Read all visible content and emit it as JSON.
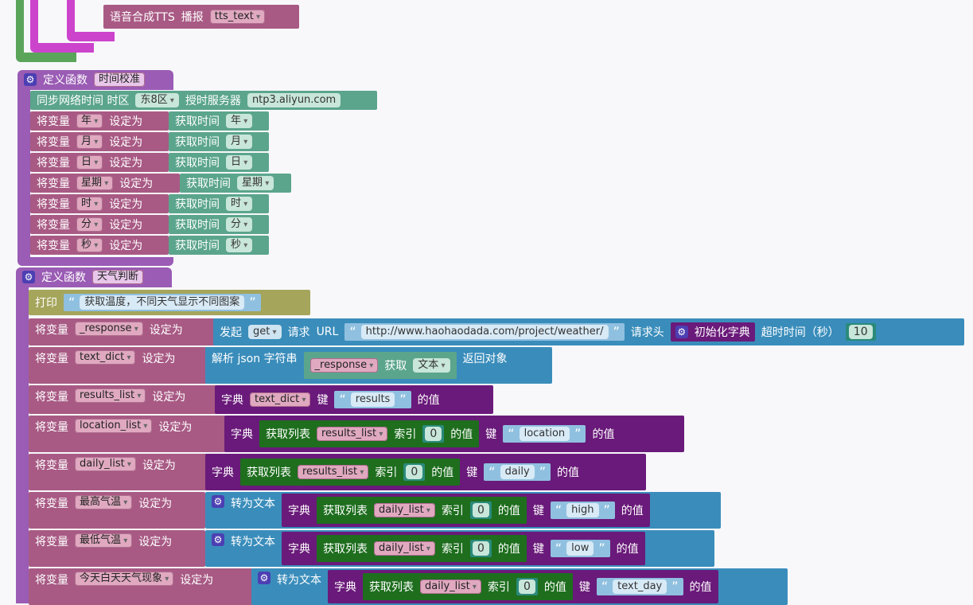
{
  "top": {
    "tts_label": "语音合成TTS",
    "broadcast_label": "播报",
    "tts_var": "tts_text"
  },
  "func1": {
    "define_label": "定义函数",
    "name": "时间校准",
    "ntp": {
      "label": "同步网络时间 时区",
      "timezone": "东8区",
      "server_label": "授时服务器",
      "server": "ntp3.aliyun.com"
    },
    "set_label": "将变量",
    "set_to": "设定为",
    "get_time": "获取时间",
    "rows": [
      {
        "var": "年",
        "unit": "年"
      },
      {
        "var": "月",
        "unit": "月"
      },
      {
        "var": "日",
        "unit": "日"
      },
      {
        "var": "星期",
        "unit": "星期"
      },
      {
        "var": "时",
        "unit": "时"
      },
      {
        "var": "分",
        "unit": "分"
      },
      {
        "var": "秒",
        "unit": "秒"
      }
    ]
  },
  "func2": {
    "define_label": "定义函数",
    "name": "天气判断",
    "print_label": "打印",
    "print_text": "获取温度，不同天气显示不同图案",
    "set_label": "将变量",
    "set_to": "设定为",
    "request": {
      "var": "_response",
      "send": "发起",
      "method": "get",
      "req": "请求",
      "url_label": "URL",
      "url": "http://www.haohaodada.com/project/weather/",
      "header_label": "请求头",
      "init_dict": "初始化字典",
      "timeout_label": "超时时间（秒）",
      "timeout": "10"
    },
    "parse": {
      "var": "text_dict",
      "label": "解析 json 字符串",
      "src": "_response",
      "get": "获取",
      "type": "文本",
      "return": "返回对象"
    },
    "dict_label": "字典",
    "key_label": "键",
    "value_label": "的值",
    "get_list": "获取列表",
    "index_label": "索引",
    "to_text": "转为文本",
    "results": {
      "var": "results_list",
      "dict": "text_dict",
      "key": "results"
    },
    "location": {
      "var": "location_list",
      "list": "results_list",
      "index": "0",
      "key": "location"
    },
    "daily": {
      "var": "daily_list",
      "list": "results_list",
      "index": "0",
      "key": "daily"
    },
    "high": {
      "var": "最高气温",
      "list": "daily_list",
      "index": "0",
      "key": "high"
    },
    "low": {
      "var": "最低气温",
      "list": "daily_list",
      "index": "0",
      "key": "low"
    },
    "day": {
      "var": "今天白天天气现象",
      "list": "daily_list",
      "index": "0",
      "key": "text_day"
    }
  }
}
